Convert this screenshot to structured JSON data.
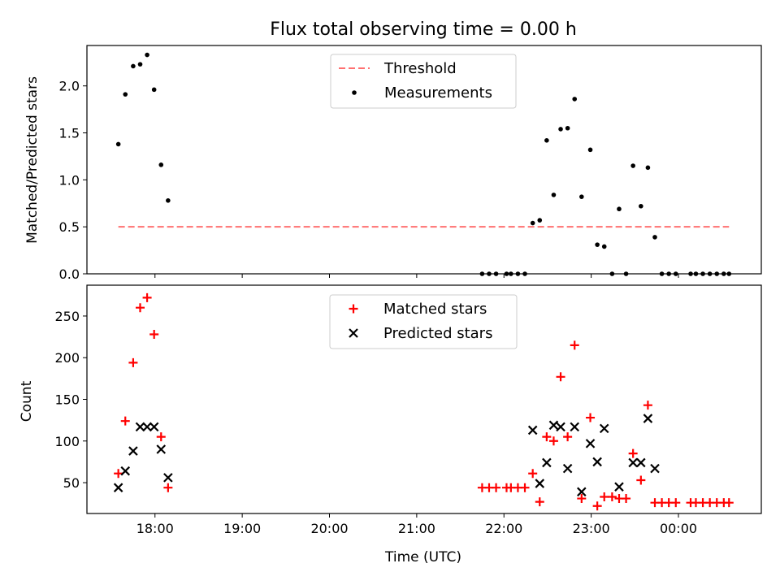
{
  "chart_data": {
    "type": "scatter",
    "title": "Flux total observing time = 0.00 h",
    "xlabel": "Time (UTC)",
    "x_range_hours": [
      17.22,
      24.95
    ],
    "x_ticks": [
      {
        "label": "18:00",
        "t": 18
      },
      {
        "label": "19:00",
        "t": 19
      },
      {
        "label": "20:00",
        "t": 20
      },
      {
        "label": "21:00",
        "t": 21
      },
      {
        "label": "22:00",
        "t": 22
      },
      {
        "label": "23:00",
        "t": 23
      },
      {
        "label": "00:00",
        "t": 24
      }
    ],
    "panels": [
      {
        "ylabel": "Matched/Predicted stars",
        "ylim": [
          0,
          2.43
        ],
        "y_ticks": [
          {
            "label": "0.0",
            "v": 0
          },
          {
            "label": "0.5",
            "v": 0.5
          },
          {
            "label": "1.0",
            "v": 1.0
          },
          {
            "label": "1.5",
            "v": 1.5
          },
          {
            "label": "2.0",
            "v": 2.0
          }
        ],
        "threshold": {
          "name": "Threshold",
          "value": 0.5,
          "x_from": 17.58,
          "x_to": 24.58,
          "color": "#ff7070"
        },
        "legend": [
          "Threshold",
          "Measurements"
        ],
        "series": [
          {
            "name": "Measurements",
            "marker": "dot",
            "color": "#000000",
            "points": [
              [
                17.58,
                1.38
              ],
              [
                17.66,
                1.91
              ],
              [
                17.75,
                2.21
              ],
              [
                17.83,
                2.23
              ],
              [
                17.91,
                2.33
              ],
              [
                17.99,
                1.96
              ],
              [
                18.07,
                1.16
              ],
              [
                18.15,
                0.78
              ],
              [
                21.75,
                0.0
              ],
              [
                21.83,
                0.0
              ],
              [
                21.91,
                0.0
              ],
              [
                22.03,
                0.0
              ],
              [
                22.08,
                0.0
              ],
              [
                22.16,
                0.0
              ],
              [
                22.24,
                0.0
              ],
              [
                22.33,
                0.54
              ],
              [
                22.41,
                0.57
              ],
              [
                22.49,
                1.42
              ],
              [
                22.57,
                0.84
              ],
              [
                22.65,
                1.54
              ],
              [
                22.73,
                1.55
              ],
              [
                22.81,
                1.86
              ],
              [
                22.89,
                0.82
              ],
              [
                22.99,
                1.32
              ],
              [
                23.07,
                0.31
              ],
              [
                23.15,
                0.29
              ],
              [
                23.24,
                0.0
              ],
              [
                23.32,
                0.69
              ],
              [
                23.4,
                0.0
              ],
              [
                23.48,
                1.15
              ],
              [
                23.57,
                0.72
              ],
              [
                23.65,
                1.13
              ],
              [
                23.73,
                0.39
              ],
              [
                23.81,
                0.0
              ],
              [
                23.89,
                0.0
              ],
              [
                23.97,
                0.0
              ],
              [
                24.14,
                0.0
              ],
              [
                24.2,
                0.0
              ],
              [
                24.28,
                0.0
              ],
              [
                24.36,
                0.0
              ],
              [
                24.44,
                0.0
              ],
              [
                24.52,
                0.0
              ],
              [
                24.58,
                0.0
              ]
            ]
          }
        ]
      },
      {
        "ylabel": "Count",
        "ylim": [
          13,
          287
        ],
        "y_ticks": [
          {
            "label": "50",
            "v": 50
          },
          {
            "label": "100",
            "v": 100
          },
          {
            "label": "150",
            "v": 150
          },
          {
            "label": "200",
            "v": 200
          },
          {
            "label": "250",
            "v": 250
          }
        ],
        "legend": [
          "Matched stars",
          "Predicted stars"
        ],
        "series": [
          {
            "name": "Matched stars",
            "marker": "plus",
            "color": "#ff0000",
            "points": [
              [
                17.58,
                61
              ],
              [
                17.66,
                124
              ],
              [
                17.75,
                194
              ],
              [
                17.83,
                260
              ],
              [
                17.91,
                272
              ],
              [
                17.99,
                228
              ],
              [
                18.07,
                105
              ],
              [
                18.15,
                44
              ],
              [
                21.75,
                44
              ],
              [
                21.83,
                44
              ],
              [
                21.91,
                44
              ],
              [
                22.03,
                44
              ],
              [
                22.08,
                44
              ],
              [
                22.16,
                44
              ],
              [
                22.24,
                44
              ],
              [
                22.33,
                61
              ],
              [
                22.41,
                27
              ],
              [
                22.49,
                105
              ],
              [
                22.57,
                100
              ],
              [
                22.65,
                177
              ],
              [
                22.73,
                105
              ],
              [
                22.81,
                215
              ],
              [
                22.89,
                31
              ],
              [
                22.99,
                128
              ],
              [
                23.07,
                22
              ],
              [
                23.15,
                33
              ],
              [
                23.24,
                33
              ],
              [
                23.32,
                31
              ],
              [
                23.4,
                31
              ],
              [
                23.48,
                85
              ],
              [
                23.57,
                53
              ],
              [
                23.65,
                143
              ],
              [
                23.73,
                26
              ],
              [
                23.81,
                26
              ],
              [
                23.89,
                26
              ],
              [
                23.97,
                26
              ],
              [
                24.14,
                26
              ],
              [
                24.2,
                26
              ],
              [
                24.28,
                26
              ],
              [
                24.36,
                26
              ],
              [
                24.44,
                26
              ],
              [
                24.52,
                26
              ],
              [
                24.58,
                26
              ]
            ]
          },
          {
            "name": "Predicted stars",
            "marker": "x",
            "color": "#000000",
            "points": [
              [
                17.58,
                44
              ],
              [
                17.66,
                64
              ],
              [
                17.75,
                88
              ],
              [
                17.83,
                117
              ],
              [
                17.91,
                117
              ],
              [
                17.99,
                117
              ],
              [
                18.07,
                90
              ],
              [
                18.15,
                56
              ],
              [
                22.33,
                113
              ],
              [
                22.41,
                49
              ],
              [
                22.49,
                74
              ],
              [
                22.57,
                119
              ],
              [
                22.65,
                117
              ],
              [
                22.73,
                67
              ],
              [
                22.81,
                117
              ],
              [
                22.89,
                39
              ],
              [
                22.99,
                97
              ],
              [
                23.07,
                75
              ],
              [
                23.15,
                115
              ],
              [
                23.32,
                45
              ],
              [
                23.48,
                74
              ],
              [
                23.57,
                74
              ],
              [
                23.65,
                127
              ],
              [
                23.73,
                67
              ]
            ]
          }
        ]
      }
    ]
  }
}
